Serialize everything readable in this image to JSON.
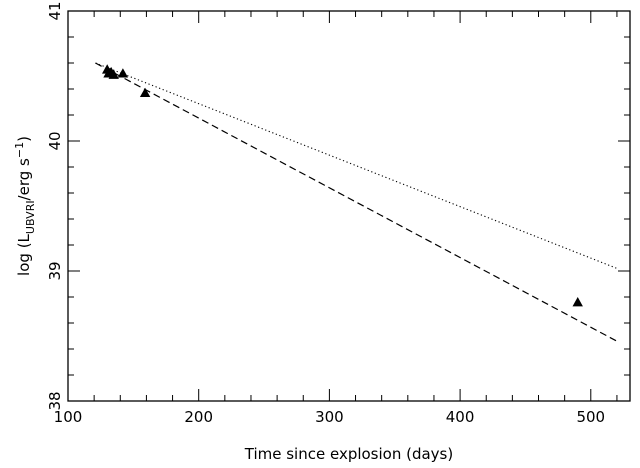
{
  "chart_data": {
    "type": "scatter",
    "xlabel": "Time since explosion (days)",
    "ylabel": {
      "prefix": "log (L",
      "subscript": "UBVRI",
      "middle": "/erg s",
      "superscript": "−1",
      "suffix": ")"
    },
    "xlim": [
      100,
      530
    ],
    "ylim": [
      38,
      41
    ],
    "x_ticks": [
      100,
      200,
      300,
      400,
      500
    ],
    "y_ticks": [
      38,
      39,
      40,
      41
    ],
    "grid": false,
    "series": [
      {
        "marker": "triangle",
        "points": [
          {
            "x": 130,
            "y": 40.55
          },
          {
            "x": 131,
            "y": 40.52
          },
          {
            "x": 133,
            "y": 40.53
          },
          {
            "x": 135,
            "y": 40.51
          },
          {
            "x": 142,
            "y": 40.52
          },
          {
            "x": 159,
            "y": 40.37
          },
          {
            "x": 490,
            "y": 38.76
          }
        ]
      },
      {
        "style": "dashed",
        "points": [
          {
            "x": 121,
            "y": 40.6
          },
          {
            "x": 520,
            "y": 38.46
          }
        ]
      },
      {
        "style": "dotted",
        "points": [
          {
            "x": 121,
            "y": 40.6
          },
          {
            "x": 520,
            "y": 39.02
          }
        ]
      }
    ]
  }
}
